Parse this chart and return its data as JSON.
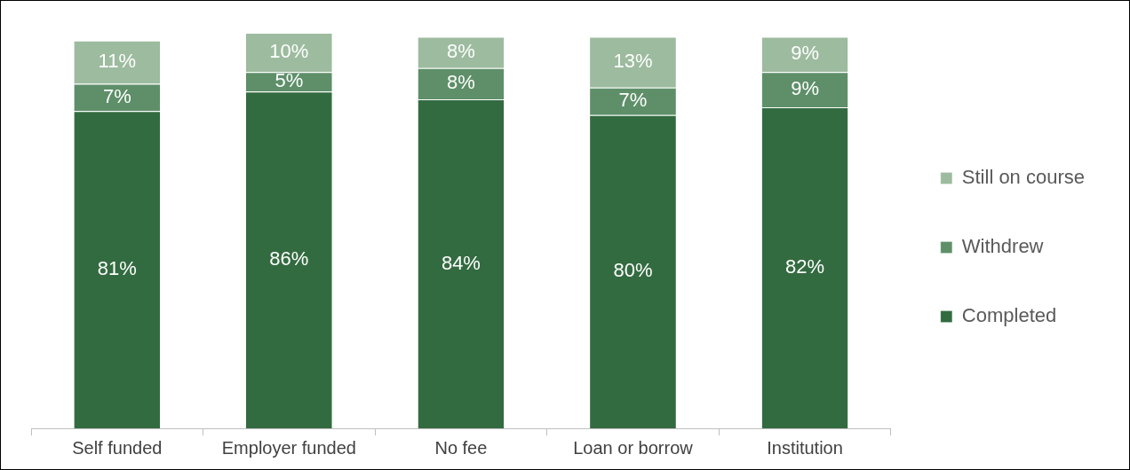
{
  "chart_data": {
    "type": "bar",
    "stacked": true,
    "categories": [
      "Self funded",
      "Employer funded",
      "No fee",
      "Loan or borrow",
      "Institution"
    ],
    "series": [
      {
        "name": "Completed",
        "color": "#336b40",
        "values": [
          81,
          86,
          84,
          80,
          82
        ],
        "value_labels": [
          "81%",
          "86%",
          "84%",
          "80%",
          "82%"
        ]
      },
      {
        "name": "Withdrew",
        "color": "#5e8f69",
        "values": [
          7,
          5,
          8,
          7,
          9
        ],
        "value_labels": [
          "7%",
          "5%",
          "8%",
          "7%",
          "9%"
        ]
      },
      {
        "name": "Still on course",
        "color": "#9dbb9f",
        "values": [
          11,
          10,
          8,
          13,
          9
        ],
        "value_labels": [
          "11%",
          "10%",
          "8%",
          "13%",
          "9%"
        ]
      }
    ],
    "ylim": [
      0,
      101
    ],
    "tick_labels": "x",
    "legend": "right",
    "grid": false
  }
}
